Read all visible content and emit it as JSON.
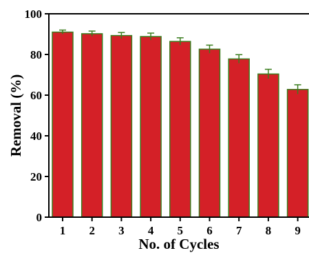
{
  "chart_data": {
    "type": "bar",
    "categories": [
      "1",
      "2",
      "3",
      "4",
      "5",
      "6",
      "7",
      "8",
      "9"
    ],
    "values": [
      91.0,
      90.2,
      89.3,
      88.8,
      86.4,
      82.6,
      77.8,
      70.4,
      62.8
    ],
    "errors": [
      1.0,
      1.3,
      1.5,
      1.7,
      1.8,
      2.0,
      2.1,
      2.3,
      2.3
    ],
    "xlabel": "No. of Cycles",
    "ylabel": "Removal (%)",
    "ylim": [
      0,
      100
    ],
    "yticks": [
      0,
      20,
      40,
      60,
      80,
      100
    ],
    "grid": false,
    "legend": "none",
    "colors": {
      "bar_fill": "#d42027",
      "bar_edge": "#3a7d1e",
      "error_bar": "#3a7d1e",
      "axis": "#000000"
    }
  }
}
